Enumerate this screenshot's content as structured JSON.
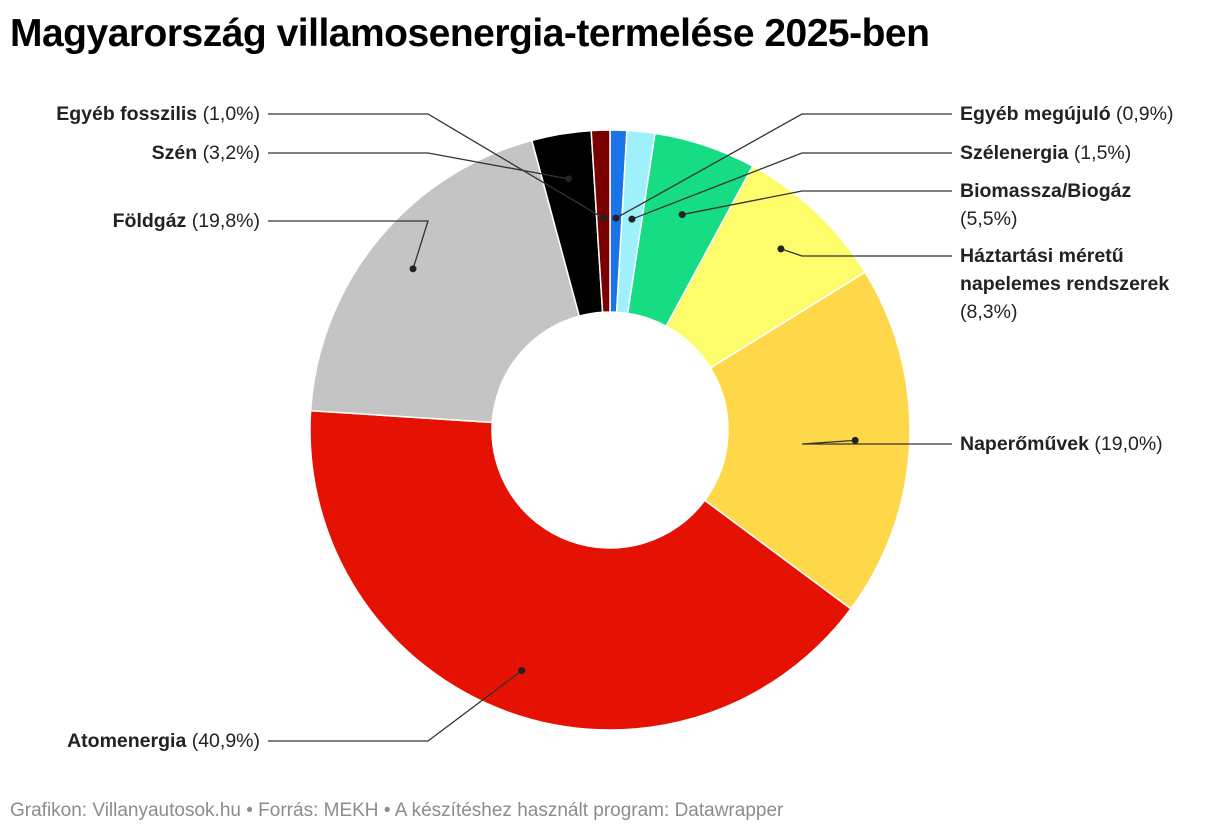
{
  "title": "Magyarország villamosenergia-termelése 2025-ben",
  "footer": {
    "credit": "Grafikon: Villanyautosok.hu",
    "source": "Forrás: MEKH",
    "tool": "A készítéshez használt program: Datawrapper",
    "separator": "•"
  },
  "chart_data": {
    "type": "pie",
    "variant": "donut",
    "title": "Magyarország villamosenergia-termelése 2025-ben",
    "unit": "%",
    "slices": [
      {
        "name": "Egyéb megújuló",
        "value": 0.9,
        "label": "(0,9%)",
        "color": "#1a73e8"
      },
      {
        "name": "Szélenergia",
        "value": 1.5,
        "label": "(1,5%)",
        "color": "#9ef0fa"
      },
      {
        "name": "Biomassza/Biogáz",
        "value": 5.5,
        "label": "(5,5%)",
        "color": "#16dc84"
      },
      {
        "name": "Háztartási méretű napelemes rendszerek",
        "value": 8.3,
        "label": "(8,3%)",
        "color": "#fdfd6b"
      },
      {
        "name": "Naperőművek",
        "value": 19.0,
        "label": "(19,0%)",
        "color": "#ffd84a"
      },
      {
        "name": "Atomenergia",
        "value": 40.9,
        "label": "(40,9%)",
        "color": "#e51102"
      },
      {
        "name": "Földgáz",
        "value": 19.8,
        "label": "(19,8%)",
        "color": "#c4c4c4"
      },
      {
        "name": "Szén",
        "value": 3.2,
        "label": "(3,2%)",
        "color": "#000000"
      },
      {
        "name": "Egyéb fosszilis",
        "value": 1.0,
        "label": "(1,0%)",
        "color": "#7a0000"
      }
    ]
  }
}
